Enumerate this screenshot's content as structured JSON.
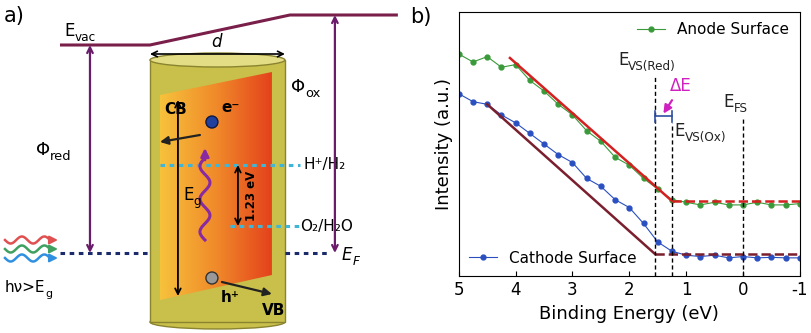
{
  "diagram": {
    "panel_label": "a)",
    "vacuum_level": {
      "main": "E",
      "sub": "vac"
    },
    "width": "d",
    "phi_red": {
      "main": "Φ",
      "sub": "red"
    },
    "phi_ox": {
      "main": "Φ",
      "sub": "ox"
    },
    "conduction_band": "CB",
    "valence_band": "VB",
    "electron": "e⁻",
    "hole": "h⁺",
    "band_gap": {
      "main": "E",
      "sub": "g"
    },
    "fermi_level": {
      "main": "E",
      "sub": "F"
    },
    "reduction_level": "H⁺/H₂",
    "oxidation_level": "O₂/H₂O",
    "gap_1_23": "1.23 eV",
    "light": {
      "main": "hν>E",
      "sub": "g"
    }
  },
  "chart_data": {
    "type": "scatter",
    "panel_label": "b)",
    "x_label": "Binding Energy (eV)",
    "y_label": "Intensity (a.u.)",
    "xlim": [
      5,
      -1
    ],
    "xticks": [
      5,
      4,
      3,
      2,
      1,
      0,
      -1
    ],
    "ylim": [
      0,
      10
    ],
    "yticks": [],
    "tick_labels": "x",
    "series": [
      {
        "name": "Anode Surface",
        "type": "scatter",
        "color": "#3a9a3a",
        "marker": "o",
        "line_style": "solid",
        "legend": "upper right",
        "x": [
          5,
          4.75,
          4.5,
          4.25,
          4.0,
          3.75,
          3.5,
          3.25,
          3.0,
          2.75,
          2.5,
          2.25,
          2.0,
          1.75,
          1.5,
          1.25,
          1.0,
          0.75,
          0.5,
          0.25,
          0,
          -0.25,
          -0.5,
          -0.75,
          -1
        ],
        "values": [
          8.4,
          8.1,
          8.3,
          7.9,
          8.0,
          7.4,
          7.0,
          6.5,
          6.1,
          5.5,
          5.1,
          4.5,
          4.2,
          3.7,
          3.3,
          2.9,
          2.8,
          2.7,
          2.8,
          2.7,
          2.7,
          2.8,
          2.7,
          2.7,
          2.75
        ]
      },
      {
        "name": "Cathode Surface",
        "type": "scatter",
        "color": "#2a4fc0",
        "marker": "o",
        "line_style": "solid",
        "legend": "lower left",
        "x": [
          5,
          4.75,
          4.5,
          4.25,
          4.0,
          3.75,
          3.5,
          3.25,
          3.0,
          2.75,
          2.5,
          2.25,
          2.0,
          1.75,
          1.5,
          1.25,
          1.0,
          0.75,
          0.5,
          0.25,
          0,
          -0.25,
          -0.5,
          -0.75,
          -1
        ],
        "values": [
          6.9,
          6.6,
          6.5,
          6.1,
          5.8,
          5.4,
          5.0,
          4.6,
          4.3,
          3.7,
          3.4,
          2.9,
          2.6,
          2.0,
          1.3,
          0.95,
          0.8,
          0.75,
          0.8,
          0.7,
          0.75,
          0.7,
          0.72,
          0.7,
          0.7
        ]
      },
      {
        "type": "line",
        "color": "#d42020",
        "line_style": "solid",
        "x": [
          4.1,
          1.25
        ],
        "values": [
          8.25,
          2.85
        ]
      },
      {
        "type": "line",
        "color": "#d42020",
        "line_style": "dashed",
        "x": [
          1.25,
          -1
        ],
        "values": [
          2.85,
          2.85
        ]
      },
      {
        "type": "line",
        "color": "#7a1f2e",
        "line_style": "solid",
        "x": [
          4.5,
          1.55
        ],
        "values": [
          6.5,
          0.85
        ]
      },
      {
        "type": "line",
        "color": "#7a1f2e",
        "line_style": "dashed",
        "x": [
          1.55,
          -1
        ],
        "values": [
          0.85,
          0.85
        ]
      }
    ],
    "annotations": [
      {
        "text": {
          "main": "E",
          "sub": "VS(Red)"
        },
        "x": 1.55
      },
      {
        "text": {
          "main": "E",
          "sub": "VS(Ox)"
        },
        "x": 1.25
      },
      {
        "text": {
          "main": "E",
          "sub": "FS"
        },
        "x": 0
      }
    ],
    "delta": {
      "text": "ΔE",
      "from": 1.55,
      "to": 1.25
    }
  }
}
